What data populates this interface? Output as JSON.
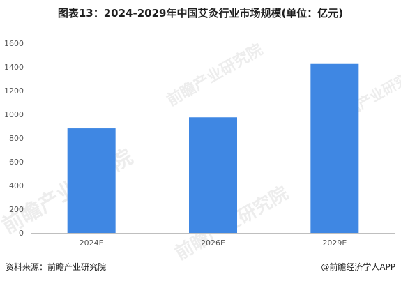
{
  "title": "图表13：2024-2029年中国艾灸行业市场规模(单位：亿元)",
  "source": "资料来源：前瞻产业研究院",
  "credit": "@前瞻经济学人APP",
  "watermark_text": "前瞻产业研究院",
  "colors": {
    "bar": "#3F87E3",
    "axis": "#bfbfbf",
    "tick_text": "#555555"
  },
  "chart_data": {
    "type": "bar",
    "categories": [
      "2024E",
      "2026E",
      "2029E"
    ],
    "values": [
      882,
      975,
      1425
    ],
    "title": "图表13：2024-2029年中国艾灸行业市场规模(单位：亿元)",
    "xlabel": "",
    "ylabel": "",
    "ylim": [
      0,
      1600
    ],
    "yticks": [
      0,
      200,
      400,
      600,
      800,
      1000,
      1200,
      1400,
      1600
    ],
    "grid": false,
    "legend": "none"
  }
}
